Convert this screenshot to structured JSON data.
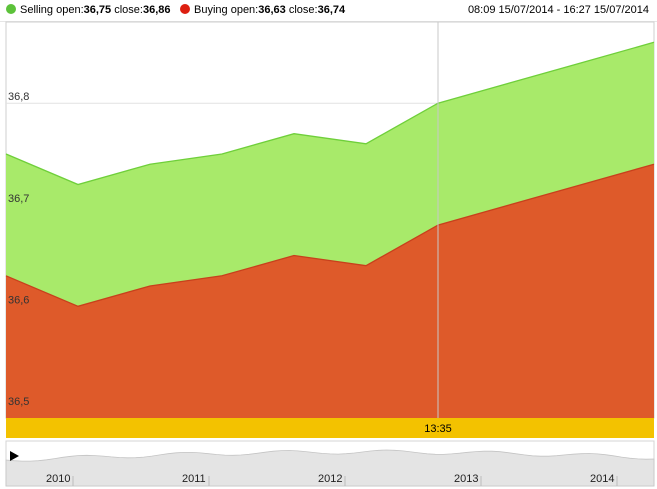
{
  "legend": {
    "selling": {
      "label": "Selling",
      "open_label": "open:",
      "open_value": "36,75",
      "close_label": "close:",
      "close_value": "36,86",
      "color": "#5cc23a"
    },
    "buying": {
      "label": "Buying",
      "open_label": "open:",
      "open_value": "36,63",
      "close_label": "close:",
      "close_value": "36,74",
      "color": "#dd1f10"
    }
  },
  "time_range": "08:09 15/07/2014 - 16:27 15/07/2014",
  "crosshair_time": "13:35",
  "colors": {
    "selling_fill": "#a8ea6a",
    "selling_line": "#6fcf3a",
    "buying_fill": "#de5a2a",
    "buying_line": "#c8401c",
    "cursor_bar": "#f3c200",
    "navigator": "#e4e4e4"
  },
  "chart_data": {
    "type": "area",
    "title": "",
    "xlabel": "",
    "ylabel": "",
    "ylim": [
      36.49,
      36.88
    ],
    "yticks": [
      {
        "value": 36.5,
        "label": "36,5"
      },
      {
        "value": 36.6,
        "label": "36,6"
      },
      {
        "value": 36.7,
        "label": "36,7"
      },
      {
        "value": 36.8,
        "label": "36,8"
      }
    ],
    "grid": true,
    "points": 10,
    "series": [
      {
        "name": "Selling",
        "values": [
          36.75,
          36.72,
          36.74,
          36.75,
          36.77,
          36.76,
          36.8,
          36.82,
          36.84,
          36.86
        ]
      },
      {
        "name": "Buying",
        "values": [
          36.63,
          36.6,
          36.62,
          36.63,
          36.65,
          36.64,
          36.68,
          36.7,
          36.72,
          36.74
        ]
      }
    ],
    "crosshair_index": 6,
    "navigator": {
      "labels": [
        "2010",
        "2011",
        "2012",
        "2013",
        "2014"
      ]
    }
  }
}
